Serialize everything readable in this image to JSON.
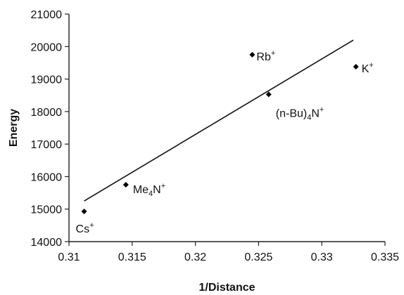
{
  "chart_data": {
    "type": "scatter",
    "title": "",
    "xlabel": "1/Distance",
    "ylabel": "Energy",
    "xlim": [
      0.31,
      0.335
    ],
    "ylim": [
      14000,
      21000
    ],
    "x_ticks": [
      "0.31",
      "0.315",
      "0.32",
      "0.325",
      "0.33",
      "0.335"
    ],
    "y_ticks": [
      "14000",
      "15000",
      "16000",
      "17000",
      "18000",
      "19000",
      "20000",
      "21000"
    ],
    "grid": false,
    "legend": "none",
    "marker_color": "#000000",
    "points": [
      {
        "x": 0.3112,
        "y": 14930,
        "label": "Cs",
        "label_sub": "",
        "label_suffix": "",
        "label_sup": "+"
      },
      {
        "x": 0.3145,
        "y": 15750,
        "label": "Me",
        "label_sub": "4",
        "label_suffix": "N",
        "label_sup": "+"
      },
      {
        "x": 0.3245,
        "y": 19750,
        "label": "Rb",
        "label_sub": "",
        "label_suffix": "",
        "label_sup": "+"
      },
      {
        "x": 0.3258,
        "y": 18530,
        "label": "(n-Bu)",
        "label_sub": "4",
        "label_suffix": "N",
        "label_sup": "+"
      },
      {
        "x": 0.3327,
        "y": 19380,
        "label": "K",
        "label_sub": "",
        "label_suffix": "",
        "label_sup": "+"
      }
    ],
    "trendline": {
      "x": [
        0.3112,
        0.3325
      ],
      "y": [
        15250,
        20200
      ]
    }
  }
}
